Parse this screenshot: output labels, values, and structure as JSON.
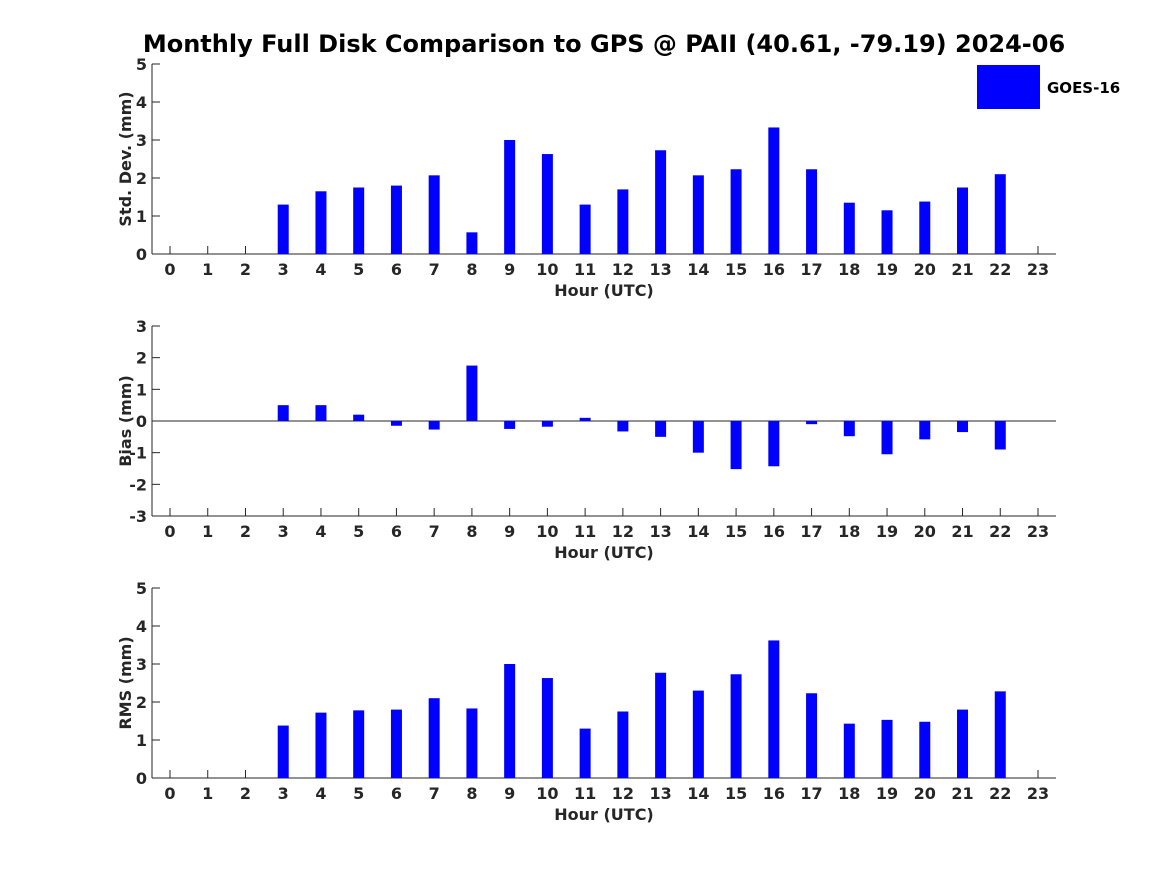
{
  "title": "Monthly Full Disk Comparison to GPS @ PAII (40.61, -79.19) 2024-06",
  "legend": {
    "label": "GOES-16",
    "color": "#0000ff"
  },
  "chart_data": [
    {
      "type": "bar",
      "ylabel": "Std. Dev. (mm)",
      "xlabel": "Hour (UTC)",
      "ylim": [
        0,
        5
      ],
      "yticks": [
        0,
        1,
        2,
        3,
        4,
        5
      ],
      "categories": [
        "0",
        "1",
        "2",
        "3",
        "4",
        "5",
        "6",
        "7",
        "8",
        "9",
        "10",
        "11",
        "12",
        "13",
        "14",
        "15",
        "16",
        "17",
        "18",
        "19",
        "20",
        "21",
        "22",
        "23"
      ],
      "series": [
        {
          "name": "GOES-16",
          "values": [
            null,
            null,
            null,
            1.3,
            1.65,
            1.75,
            1.8,
            2.07,
            0.57,
            3.0,
            2.63,
            1.3,
            1.7,
            2.73,
            2.07,
            2.23,
            3.33,
            2.23,
            1.35,
            1.15,
            1.38,
            1.75,
            2.1,
            null
          ]
        }
      ]
    },
    {
      "type": "bar",
      "ylabel": "Bias (mm)",
      "xlabel": "Hour (UTC)",
      "ylim": [
        -3,
        3
      ],
      "yticks": [
        -3,
        -2,
        -1,
        0,
        1,
        2,
        3
      ],
      "categories": [
        "0",
        "1",
        "2",
        "3",
        "4",
        "5",
        "6",
        "7",
        "8",
        "9",
        "10",
        "11",
        "12",
        "13",
        "14",
        "15",
        "16",
        "17",
        "18",
        "19",
        "20",
        "21",
        "22",
        "23"
      ],
      "series": [
        {
          "name": "GOES-16",
          "values": [
            null,
            null,
            null,
            0.5,
            0.5,
            0.2,
            -0.15,
            -0.27,
            1.75,
            -0.25,
            -0.18,
            0.1,
            -0.33,
            -0.5,
            -1.0,
            -1.52,
            -1.43,
            -0.1,
            -0.48,
            -1.05,
            -0.58,
            -0.35,
            -0.9,
            null
          ]
        }
      ]
    },
    {
      "type": "bar",
      "ylabel": "RMS (mm)",
      "xlabel": "Hour (UTC)",
      "ylim": [
        0,
        5
      ],
      "yticks": [
        0,
        1,
        2,
        3,
        4,
        5
      ],
      "categories": [
        "0",
        "1",
        "2",
        "3",
        "4",
        "5",
        "6",
        "7",
        "8",
        "9",
        "10",
        "11",
        "12",
        "13",
        "14",
        "15",
        "16",
        "17",
        "18",
        "19",
        "20",
        "21",
        "22",
        "23"
      ],
      "series": [
        {
          "name": "GOES-16",
          "values": [
            null,
            null,
            null,
            1.38,
            1.72,
            1.78,
            1.8,
            2.1,
            1.83,
            3.0,
            2.63,
            1.3,
            1.75,
            2.77,
            2.3,
            2.73,
            3.62,
            2.23,
            1.43,
            1.53,
            1.48,
            1.8,
            2.28,
            null
          ]
        }
      ]
    }
  ]
}
